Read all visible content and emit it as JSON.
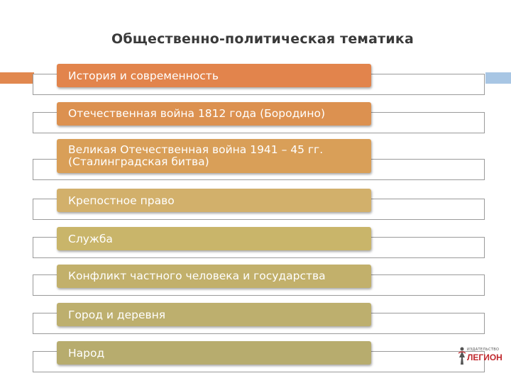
{
  "title": "Общественно-политическая тематика",
  "colors": {
    "accent_left": "#e1884f",
    "accent_right": "#a8c6e4",
    "outline": "#9a9a9a",
    "text": "#ffffff"
  },
  "items": [
    {
      "label": "История и современность",
      "color": "#e2844c"
    },
    {
      "label": "Отечественная война 1812 года (Бородино)",
      "color": "#dc9150"
    },
    {
      "label": "Великая Отечественная война 1941 – 45 гг. (Сталинградская битва)",
      "color": "#d99f58"
    },
    {
      "label": "Крепостное право",
      "color": "#d2b06b"
    },
    {
      "label": "Служба",
      "color": "#c9b56a"
    },
    {
      "label": "Конфликт частного человека и государства",
      "color": "#c2b06b"
    },
    {
      "label": "Город и деревня",
      "color": "#bdaf6e"
    },
    {
      "label": "Народ",
      "color": "#b7ac6e"
    }
  ],
  "logo": {
    "small": "ИЗДАТЕЛЬСТВО",
    "main": "ЛЕГИОН",
    "icon": "legion-logo-icon"
  }
}
